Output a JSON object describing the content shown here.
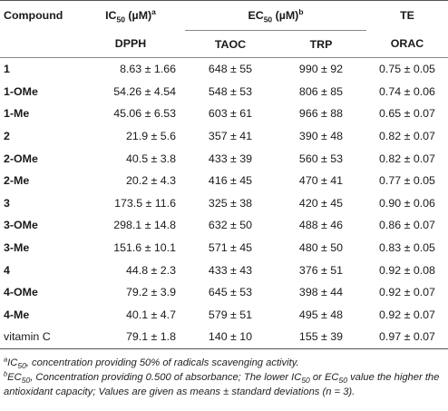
{
  "headers": {
    "compound": "Compound",
    "ic50": "IC",
    "ic50_sub": "50",
    "ic50_unit": " (µM)",
    "ic50_sup": "a",
    "ec50": "EC",
    "ec50_sub": "50",
    "ec50_unit": " (µM)",
    "ec50_sup": "b",
    "te": "TE",
    "dpph": "DPPH",
    "taoc": "TAOC",
    "trp": "TRP",
    "orac": "ORAC"
  },
  "rows": [
    {
      "compound": "1",
      "dpph": "8.63 ± 1.66",
      "taoc": "648 ± 55",
      "trp": "990 ± 92",
      "orac": "0.75 ± 0.05",
      "bold": true
    },
    {
      "compound": "1-OMe",
      "dpph": "54.26 ± 4.54",
      "taoc": "548 ± 53",
      "trp": "806 ± 85",
      "orac": "0.74 ± 0.06",
      "bold": true
    },
    {
      "compound": "1-Me",
      "dpph": "45.06 ± 6.53",
      "taoc": "603 ± 61",
      "trp": "966 ± 88",
      "orac": "0.65 ± 0.07",
      "bold": true
    },
    {
      "compound": "2",
      "dpph": "21.9 ± 5.6",
      "taoc": "357 ± 41",
      "trp": "390 ± 48",
      "orac": "0.82 ± 0.07",
      "bold": true
    },
    {
      "compound": "2-OMe",
      "dpph": "40.5 ± 3.8",
      "taoc": "433 ± 39",
      "trp": "560 ± 53",
      "orac": "0.82 ± 0.07",
      "bold": true
    },
    {
      "compound": "2-Me",
      "dpph": "20.2 ± 4.3",
      "taoc": "416 ± 45",
      "trp": "470 ± 41",
      "orac": "0.77 ± 0.05",
      "bold": true
    },
    {
      "compound": "3",
      "dpph": "173.5 ± 11.6",
      "taoc": "325 ± 38",
      "trp": "420 ± 45",
      "orac": "0.90 ± 0.06",
      "bold": true
    },
    {
      "compound": "3-OMe",
      "dpph": "298.1 ± 14.8",
      "taoc": "632 ± 50",
      "trp": "488 ± 46",
      "orac": "0.86 ± 0.07",
      "bold": true
    },
    {
      "compound": "3-Me",
      "dpph": "151.6 ± 10.1",
      "taoc": "571 ± 45",
      "trp": "480 ± 50",
      "orac": "0.83 ± 0.05",
      "bold": true
    },
    {
      "compound": "4",
      "dpph": "44.8 ± 2.3",
      "taoc": "433 ± 43",
      "trp": "376 ± 51",
      "orac": "0.92 ± 0.08",
      "bold": true
    },
    {
      "compound": "4-OMe",
      "dpph": "79.2 ± 3.9",
      "taoc": "645 ± 53",
      "trp": "398 ± 44",
      "orac": "0.92 ± 0.07",
      "bold": true
    },
    {
      "compound": "4-Me",
      "dpph": "40.1 ± 4.7",
      "taoc": "579 ± 51",
      "trp": "495 ± 48",
      "orac": "0.92 ± 0.07",
      "bold": true
    },
    {
      "compound": "vitamin C",
      "dpph": "79.1 ± 1.8",
      "taoc": "140 ± 10",
      "trp": "155 ± 39",
      "orac": "0.97 ± 0.07",
      "bold": false
    }
  ],
  "footnotes": {
    "a_mark": "a",
    "a_ic": "IC",
    "a_sub": "50",
    "a_text": ", concentration providing 50% of radicals scavenging activity.",
    "b_mark": "b",
    "b_ec": "EC",
    "b_sub1": "50",
    "b_text1": ", Concentration providing 0.500 of absorbance; The lower IC",
    "b_sub2": "50",
    "b_text2": " or EC",
    "b_sub3": "50",
    "b_text3": " value the higher the antioxidant capacity; Values are given as means ± standard deviations (n = 3)."
  }
}
